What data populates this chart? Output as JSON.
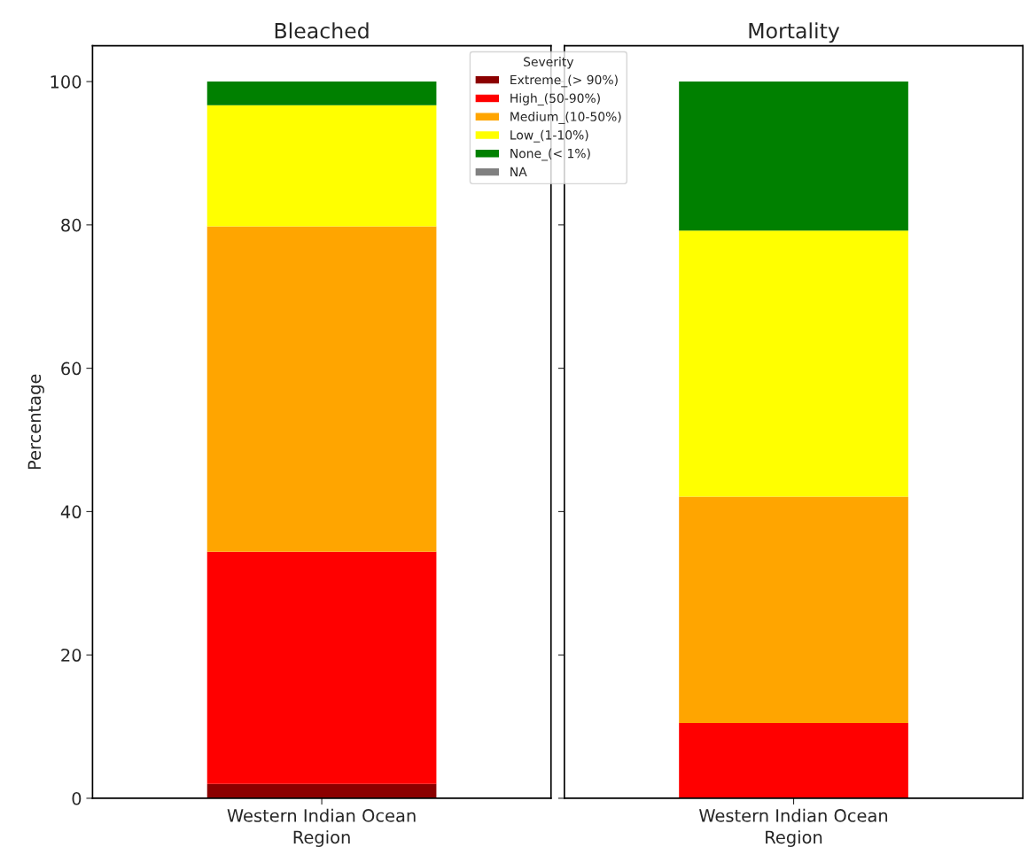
{
  "chart_data": [
    {
      "type": "bar",
      "title": "Bleached",
      "xlabel": "Region",
      "ylabel": "Percentage",
      "categories": [
        "Western Indian Ocean"
      ],
      "stacked": true,
      "ylim": [
        0,
        105
      ],
      "yticks": [
        0,
        20,
        40,
        60,
        80,
        100
      ],
      "legend": "top right",
      "legend_title": "Severity",
      "grid": false,
      "series": [
        {
          "name": "Extreme_(> 90%)",
          "color": "#8b0000",
          "values": [
            2.0
          ]
        },
        {
          "name": "High_(50-90%)",
          "color": "#ff0000",
          "values": [
            32.4
          ]
        },
        {
          "name": "Medium_(10-50%)",
          "color": "#ffa500",
          "values": [
            45.4
          ]
        },
        {
          "name": "Low_(1-10%)",
          "color": "#ffff00",
          "values": [
            16.9
          ]
        },
        {
          "name": "None_(< 1%)",
          "color": "#008000",
          "values": [
            3.3
          ]
        },
        {
          "name": "NA",
          "color": "#808080",
          "values": [
            null
          ]
        }
      ]
    },
    {
      "type": "bar",
      "title": "Mortality",
      "xlabel": "Region",
      "categories": [
        "Western Indian Ocean"
      ],
      "stacked": true,
      "ylim": [
        0,
        105
      ],
      "yticks": [
        0,
        20,
        40,
        60,
        80,
        100
      ],
      "tick_labels": "x",
      "grid": false,
      "series": [
        {
          "color": "#ff0000",
          "values": [
            10.5
          ]
        },
        {
          "color": "#ffa500",
          "values": [
            31.6
          ]
        },
        {
          "color": "#ffff00",
          "values": [
            37.1
          ]
        },
        {
          "color": "#008000",
          "values": [
            20.8
          ]
        }
      ]
    }
  ]
}
